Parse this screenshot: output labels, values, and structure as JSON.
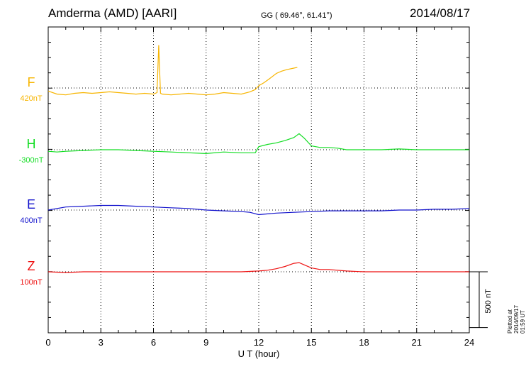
{
  "header": {
    "station": "Amderma (AMD)  [AARI]",
    "coords": "GG ( 69.46°,  61.41°)",
    "date": "2014/08/17"
  },
  "footer": {
    "plotted": "Plotted at 2014/09/17 01:59 UT"
  },
  "chart_data": {
    "type": "line",
    "title": "Amderma (AMD)  [AARI]",
    "xlabel": "U T (hour)",
    "xlim": [
      0,
      24
    ],
    "xticks": [
      0,
      3,
      6,
      9,
      12,
      15,
      18,
      21,
      24
    ],
    "scale_bar_label": "500 nT",
    "scale_bar_nT": 500,
    "panel_span_nT": 2000,
    "series": [
      {
        "name": "F",
        "baseline_label": "420nT",
        "color": "#F7B500",
        "offset_nT": 0,
        "t": [
          0,
          0.5,
          1,
          1.5,
          2,
          2.5,
          3,
          3.5,
          4,
          4.5,
          5,
          5.5,
          6,
          6.2,
          6.3,
          6.4,
          6.5,
          7,
          7.5,
          8,
          8.5,
          9,
          9.5,
          10,
          10.5,
          11,
          11.5,
          11.8,
          12,
          12.3,
          12.6,
          13,
          13.3,
          13.6,
          14,
          14.2
        ],
        "v": [
          -20,
          -40,
          -45,
          -35,
          -30,
          -35,
          -30,
          -25,
          -30,
          -35,
          -40,
          -35,
          -40,
          -30,
          280,
          -35,
          -40,
          -45,
          -40,
          -35,
          -40,
          -45,
          -40,
          -30,
          -35,
          -40,
          -25,
          -10,
          15,
          35,
          60,
          95,
          110,
          120,
          130,
          135
        ]
      },
      {
        "name": "H",
        "baseline_label": "-300nT",
        "color": "#11DD22",
        "offset_nT": 0,
        "t": [
          0,
          0.5,
          1,
          2,
          3,
          4,
          5,
          6,
          7,
          8,
          9,
          10,
          11,
          11.8,
          12,
          12.5,
          13,
          13.5,
          14,
          14.3,
          14.6,
          15,
          15.5,
          16,
          16.5,
          17,
          18,
          19,
          20,
          21,
          22,
          23,
          24
        ],
        "v": [
          -10,
          -15,
          -10,
          -5,
          0,
          0,
          -5,
          -10,
          -15,
          -20,
          -25,
          -15,
          -20,
          -20,
          20,
          35,
          45,
          60,
          80,
          105,
          75,
          25,
          15,
          15,
          10,
          0,
          0,
          0,
          5,
          0,
          0,
          0,
          0
        ]
      },
      {
        "name": "E",
        "baseline_label": "400nT",
        "color": "#1111CC",
        "offset_nT": 0,
        "t": [
          0,
          1,
          2,
          3,
          4,
          5,
          6,
          7,
          8,
          9,
          10,
          11,
          11.5,
          12,
          12.5,
          13,
          14,
          15,
          16,
          17,
          18,
          19,
          20,
          21,
          22,
          23,
          24
        ],
        "v": [
          0,
          20,
          25,
          30,
          30,
          25,
          20,
          15,
          10,
          0,
          -5,
          -10,
          -15,
          -30,
          -25,
          -20,
          -15,
          -10,
          -5,
          -5,
          -5,
          -5,
          0,
          0,
          5,
          5,
          10
        ]
      },
      {
        "name": "Z",
        "baseline_label": "100nT",
        "color": "#EE1111",
        "offset_nT": 0,
        "t": [
          0,
          1,
          2,
          3,
          4,
          5,
          6,
          7,
          8,
          9,
          10,
          11,
          12,
          12.5,
          13,
          13.5,
          14,
          14.3,
          14.6,
          15,
          15.5,
          16,
          17,
          18,
          19,
          20,
          21,
          22,
          23,
          24
        ],
        "v": [
          0,
          -5,
          0,
          0,
          0,
          0,
          0,
          0,
          0,
          0,
          0,
          0,
          5,
          10,
          20,
          35,
          55,
          60,
          45,
          25,
          15,
          15,
          5,
          0,
          0,
          0,
          0,
          0,
          0,
          0
        ]
      }
    ]
  }
}
